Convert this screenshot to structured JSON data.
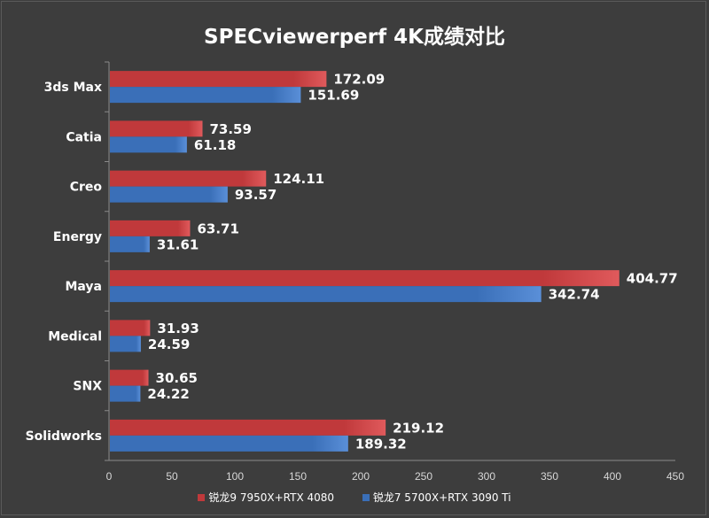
{
  "chart_data": {
    "type": "bar",
    "orientation": "horizontal",
    "title": "SPECviewerperf 4K成绩对比",
    "categories": [
      "3ds Max",
      "Catia",
      "Creo",
      "Energy",
      "Maya",
      "Medical",
      "SNX",
      "Solidworks"
    ],
    "series": [
      {
        "name": "锐龙9 7950X+RTX 4080",
        "color": "#c0393b",
        "values": [
          172.09,
          73.59,
          124.11,
          63.71,
          404.77,
          31.93,
          30.65,
          219.12
        ]
      },
      {
        "name": "锐龙7 5700X+RTX 3090 Ti",
        "color": "#3a6fb8",
        "values": [
          151.69,
          61.18,
          93.57,
          31.61,
          342.74,
          24.59,
          24.22,
          189.32
        ]
      }
    ],
    "xlim": [
      0,
      450
    ],
    "xticks": [
      0,
      50,
      100,
      150,
      200,
      250,
      300,
      350,
      400,
      450
    ],
    "grid": false,
    "legend_position": "bottom",
    "background": "#3d3d3d"
  }
}
